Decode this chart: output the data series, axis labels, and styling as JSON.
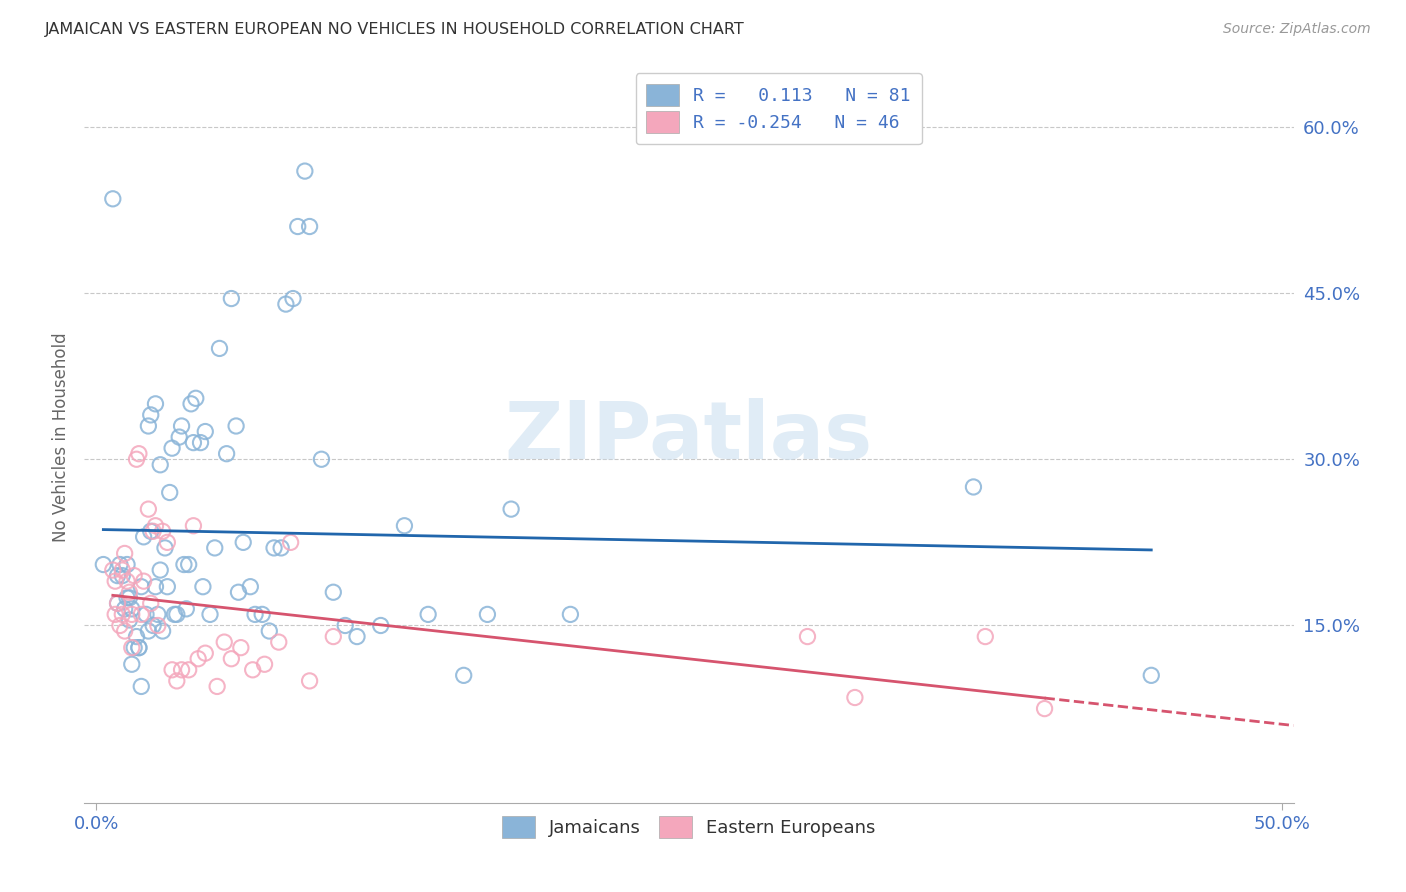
{
  "title": "JAMAICAN VS EASTERN EUROPEAN NO VEHICLES IN HOUSEHOLD CORRELATION CHART",
  "source": "Source: ZipAtlas.com",
  "ylabel": "No Vehicles in Household",
  "xlabel_jamaicans": "Jamaicans",
  "xlabel_easterneuropeans": "Eastern Europeans",
  "xlim": [
    -0.005,
    0.505
  ],
  "ylim": [
    -0.01,
    0.65
  ],
  "xtick_labels": [
    "0.0%",
    "50.0%"
  ],
  "xtick_vals": [
    0.0,
    0.5
  ],
  "ytick_labels": [
    "15.0%",
    "30.0%",
    "45.0%",
    "60.0%"
  ],
  "ytick_vals": [
    0.15,
    0.3,
    0.45,
    0.6
  ],
  "R_jamaicans": 0.113,
  "N_jamaicans": 81,
  "R_easterneuropeans": -0.254,
  "N_easterneuropeans": 46,
  "color_jamaicans": "#8ab4d8",
  "color_easterneuropeans": "#f4a7bc",
  "trendline_jamaicans": "#2166ac",
  "trendline_easterneuropeans": "#d6546e",
  "watermark": "ZIPatlas",
  "background_color": "#ffffff",
  "jamaicans_x": [
    0.003,
    0.007,
    0.009,
    0.009,
    0.01,
    0.011,
    0.012,
    0.013,
    0.013,
    0.014,
    0.014,
    0.015,
    0.015,
    0.016,
    0.017,
    0.018,
    0.018,
    0.019,
    0.019,
    0.02,
    0.021,
    0.022,
    0.022,
    0.023,
    0.023,
    0.024,
    0.025,
    0.025,
    0.026,
    0.027,
    0.027,
    0.028,
    0.029,
    0.03,
    0.031,
    0.032,
    0.033,
    0.034,
    0.035,
    0.036,
    0.037,
    0.038,
    0.039,
    0.04,
    0.041,
    0.042,
    0.044,
    0.045,
    0.046,
    0.048,
    0.05,
    0.052,
    0.055,
    0.057,
    0.059,
    0.06,
    0.062,
    0.065,
    0.067,
    0.07,
    0.073,
    0.075,
    0.078,
    0.08,
    0.083,
    0.085,
    0.088,
    0.09,
    0.095,
    0.1,
    0.105,
    0.11,
    0.12,
    0.13,
    0.14,
    0.155,
    0.165,
    0.175,
    0.2,
    0.37,
    0.445
  ],
  "jamaicans_y": [
    0.205,
    0.535,
    0.195,
    0.17,
    0.205,
    0.195,
    0.165,
    0.175,
    0.205,
    0.175,
    0.155,
    0.165,
    0.115,
    0.13,
    0.14,
    0.13,
    0.13,
    0.185,
    0.095,
    0.23,
    0.16,
    0.33,
    0.145,
    0.34,
    0.235,
    0.15,
    0.185,
    0.35,
    0.16,
    0.295,
    0.2,
    0.145,
    0.22,
    0.185,
    0.27,
    0.31,
    0.16,
    0.16,
    0.32,
    0.33,
    0.205,
    0.165,
    0.205,
    0.35,
    0.315,
    0.355,
    0.315,
    0.185,
    0.325,
    0.16,
    0.22,
    0.4,
    0.305,
    0.445,
    0.33,
    0.18,
    0.225,
    0.185,
    0.16,
    0.16,
    0.145,
    0.22,
    0.22,
    0.44,
    0.445,
    0.51,
    0.56,
    0.51,
    0.3,
    0.18,
    0.15,
    0.14,
    0.15,
    0.24,
    0.16,
    0.105,
    0.16,
    0.255,
    0.16,
    0.275,
    0.105
  ],
  "eastern_x": [
    0.007,
    0.008,
    0.008,
    0.009,
    0.01,
    0.011,
    0.011,
    0.012,
    0.012,
    0.013,
    0.014,
    0.015,
    0.015,
    0.016,
    0.017,
    0.018,
    0.019,
    0.02,
    0.022,
    0.023,
    0.024,
    0.025,
    0.026,
    0.028,
    0.03,
    0.032,
    0.034,
    0.036,
    0.039,
    0.041,
    0.043,
    0.046,
    0.051,
    0.054,
    0.057,
    0.061,
    0.066,
    0.071,
    0.077,
    0.082,
    0.09,
    0.1,
    0.3,
    0.32,
    0.375,
    0.4
  ],
  "eastern_y": [
    0.2,
    0.16,
    0.19,
    0.17,
    0.15,
    0.2,
    0.16,
    0.215,
    0.145,
    0.19,
    0.18,
    0.13,
    0.16,
    0.195,
    0.3,
    0.305,
    0.16,
    0.19,
    0.255,
    0.17,
    0.235,
    0.24,
    0.15,
    0.235,
    0.225,
    0.11,
    0.1,
    0.11,
    0.11,
    0.24,
    0.12,
    0.125,
    0.095,
    0.135,
    0.12,
    0.13,
    0.11,
    0.115,
    0.135,
    0.225,
    0.1,
    0.14,
    0.14,
    0.085,
    0.14,
    0.075
  ]
}
